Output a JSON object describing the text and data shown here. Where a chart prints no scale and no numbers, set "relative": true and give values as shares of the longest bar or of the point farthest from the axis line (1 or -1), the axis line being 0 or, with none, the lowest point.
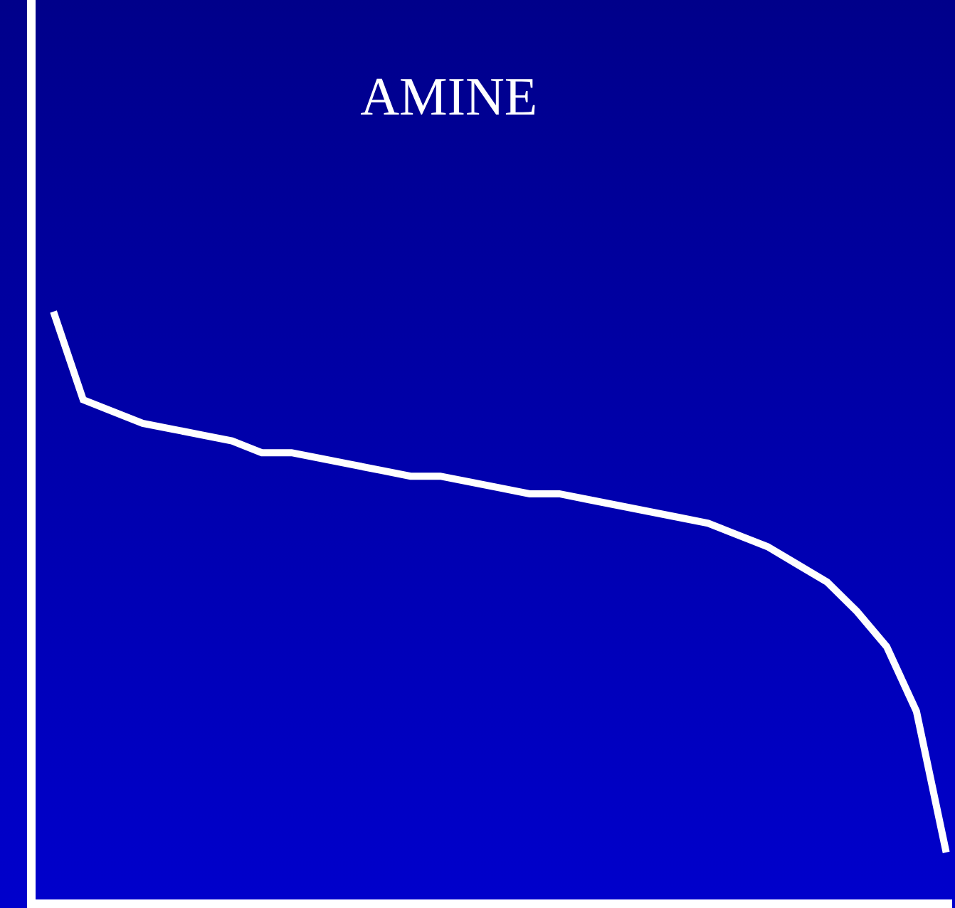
{
  "chart_data": {
    "type": "line",
    "title": "AMINE",
    "relative": true,
    "color": "#ffffff",
    "categories": [
      null,
      null,
      null,
      null,
      null,
      null,
      null,
      null,
      null,
      null,
      null,
      null,
      null,
      null,
      null,
      null,
      null,
      null,
      null,
      null,
      null,
      null,
      null,
      null,
      null,
      null,
      null,
      null,
      null,
      null,
      null
    ],
    "values": [
      1.0,
      0.85,
      0.83,
      0.81,
      0.8,
      0.79,
      0.78,
      0.76,
      0.76,
      0.75,
      0.74,
      0.73,
      0.72,
      0.72,
      0.71,
      0.7,
      0.69,
      0.69,
      0.68,
      0.67,
      0.66,
      0.65,
      0.64,
      0.62,
      0.6,
      0.57,
      0.54,
      0.49,
      0.43,
      0.32,
      0.08
    ],
    "grid": false,
    "legend": false,
    "marker": "none",
    "line_style": "solid"
  }
}
